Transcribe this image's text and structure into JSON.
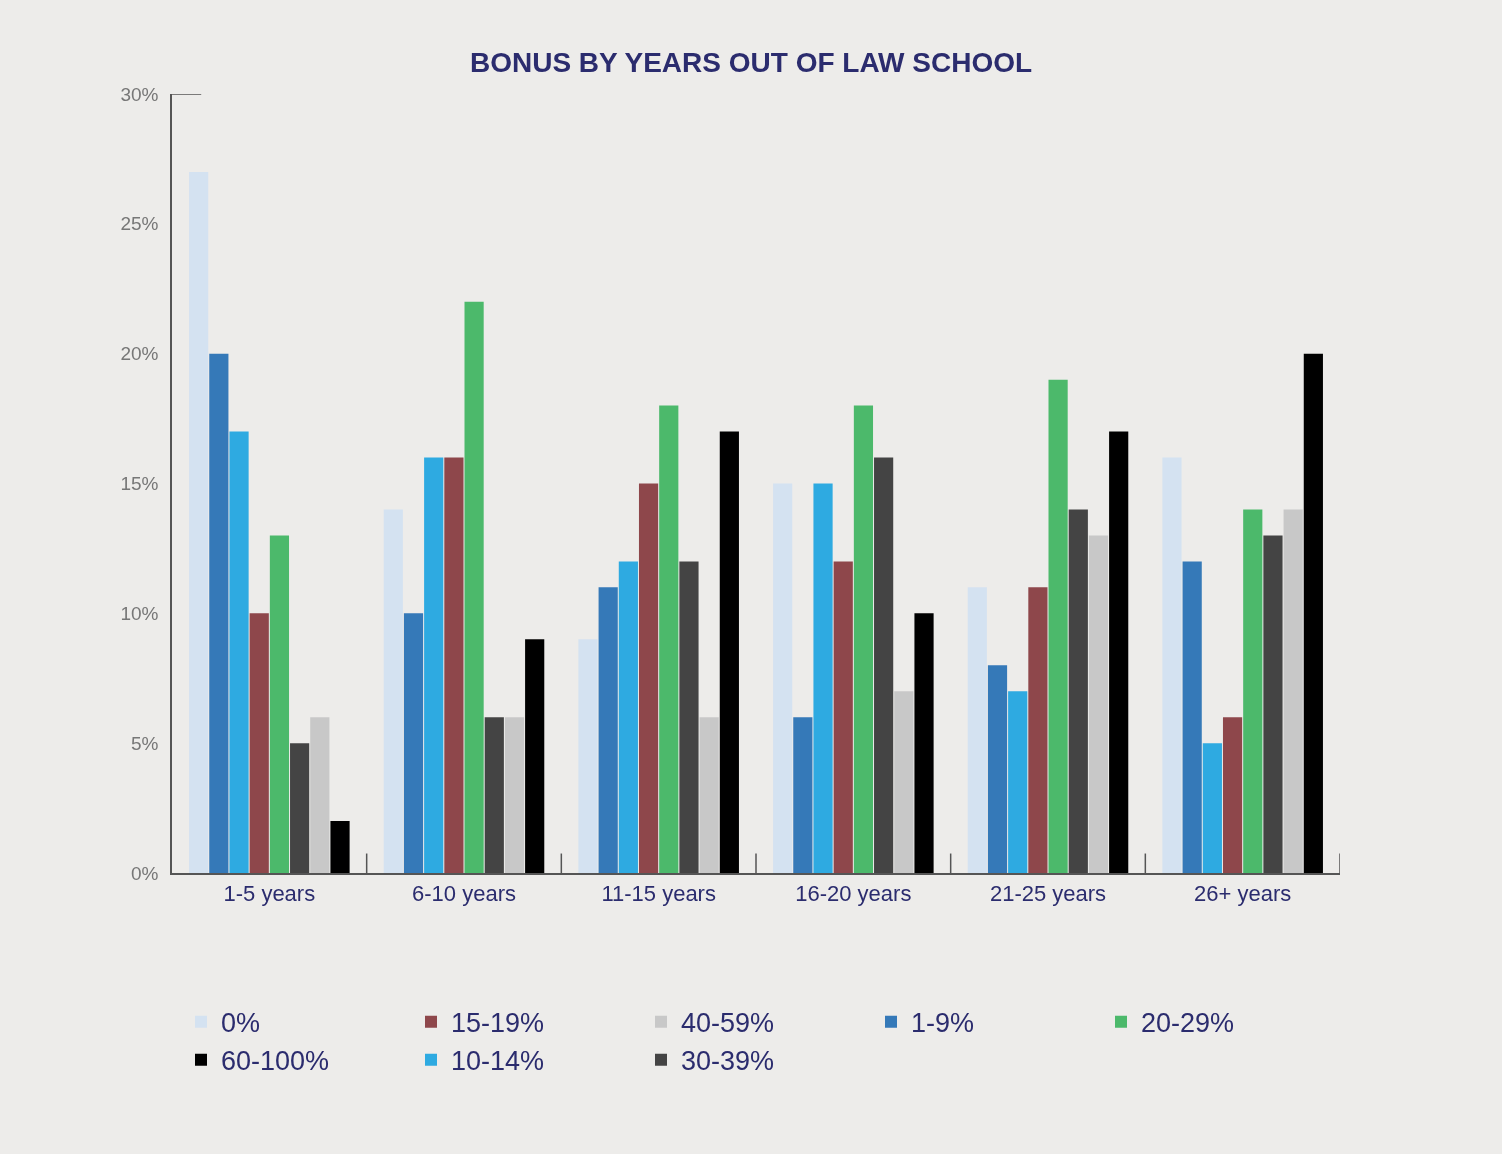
{
  "chart_data": {
    "type": "bar",
    "title": "BONUS BY YEARS OUT OF LAW SCHOOL",
    "categories": [
      "1-5 years",
      "6-10 years",
      "11-15 years",
      "16-20 years",
      "21-25 years",
      "26+ years"
    ],
    "series": [
      {
        "name": "0%",
        "color": "#d4e2f1",
        "values": [
          27,
          14,
          9,
          15,
          11,
          16
        ]
      },
      {
        "name": "1-9%",
        "color": "#3579b8",
        "values": [
          20,
          10,
          11,
          6,
          8,
          12
        ]
      },
      {
        "name": "10-14%",
        "color": "#2eaae1",
        "values": [
          17,
          16,
          12,
          15,
          7,
          5
        ]
      },
      {
        "name": "15-19%",
        "color": "#8e474b",
        "values": [
          10,
          16,
          15,
          12,
          11,
          6
        ]
      },
      {
        "name": "20-29%",
        "color": "#4cb96b",
        "values": [
          13,
          22,
          18,
          18,
          19,
          14
        ]
      },
      {
        "name": "30-39%",
        "color": "#444444",
        "values": [
          5,
          6,
          12,
          16,
          14,
          13
        ]
      },
      {
        "name": "40-59%",
        "color": "#c8c8c8",
        "values": [
          6,
          6,
          6,
          7,
          13,
          14
        ]
      },
      {
        "name": "60-100%",
        "color": "#000000",
        "values": [
          2,
          9,
          17,
          10,
          17,
          20
        ]
      }
    ],
    "ylim": [
      0,
      30
    ],
    "yticks": [
      {
        "value": 0,
        "label": "0%"
      },
      {
        "value": 5,
        "label": "5%"
      },
      {
        "value": 10,
        "label": "10%"
      },
      {
        "value": 15,
        "label": "15%"
      },
      {
        "value": 20,
        "label": "20%"
      },
      {
        "value": 25,
        "label": "25%"
      },
      {
        "value": 30,
        "label": "30%"
      }
    ],
    "grid": false,
    "legend": "bottom"
  }
}
